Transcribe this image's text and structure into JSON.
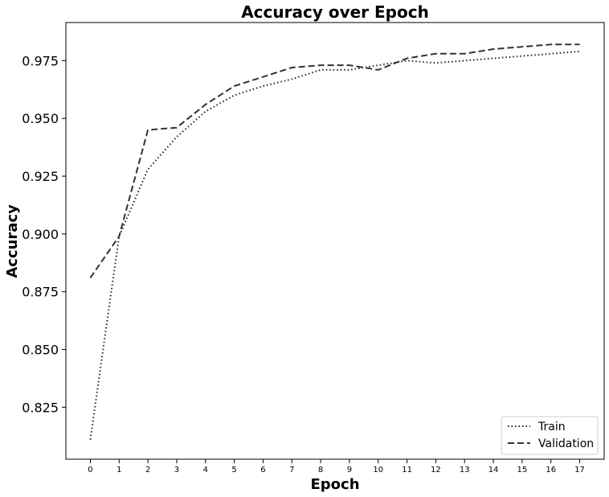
{
  "chart_data": {
    "type": "line",
    "title": "Accuracy over Epoch",
    "xlabel": "Epoch",
    "ylabel": "Accuracy",
    "x": [
      0,
      1,
      2,
      3,
      4,
      5,
      6,
      7,
      8,
      9,
      10,
      11,
      12,
      13,
      14,
      15,
      16,
      17
    ],
    "xticks": [
      0,
      1,
      2,
      3,
      4,
      5,
      6,
      7,
      8,
      9,
      10,
      11,
      12,
      13,
      14,
      15,
      16,
      17
    ],
    "xlim": [
      -0.85,
      17.85
    ],
    "ylim": [
      0.8025,
      0.9915
    ],
    "yticks": [
      0.825,
      0.85,
      0.875,
      0.9,
      0.925,
      0.95,
      0.975
    ],
    "ytick_labels": [
      "0.825",
      "0.850",
      "0.875",
      "0.900",
      "0.925",
      "0.950",
      "0.975"
    ],
    "grid": false,
    "legend_position": "lower-right",
    "series": [
      {
        "name": "Train",
        "style": "dotted",
        "color": "#222222",
        "values": [
          0.811,
          0.899,
          0.928,
          0.942,
          0.953,
          0.96,
          0.964,
          0.967,
          0.971,
          0.971,
          0.973,
          0.975,
          0.974,
          0.975,
          0.976,
          0.977,
          0.978,
          0.979
        ]
      },
      {
        "name": "Validation",
        "style": "dashed",
        "color": "#333333",
        "values": [
          0.881,
          0.899,
          0.945,
          0.946,
          0.956,
          0.964,
          0.968,
          0.972,
          0.973,
          0.973,
          0.971,
          0.976,
          0.978,
          0.978,
          0.98,
          0.981,
          0.982,
          0.982
        ]
      }
    ]
  }
}
